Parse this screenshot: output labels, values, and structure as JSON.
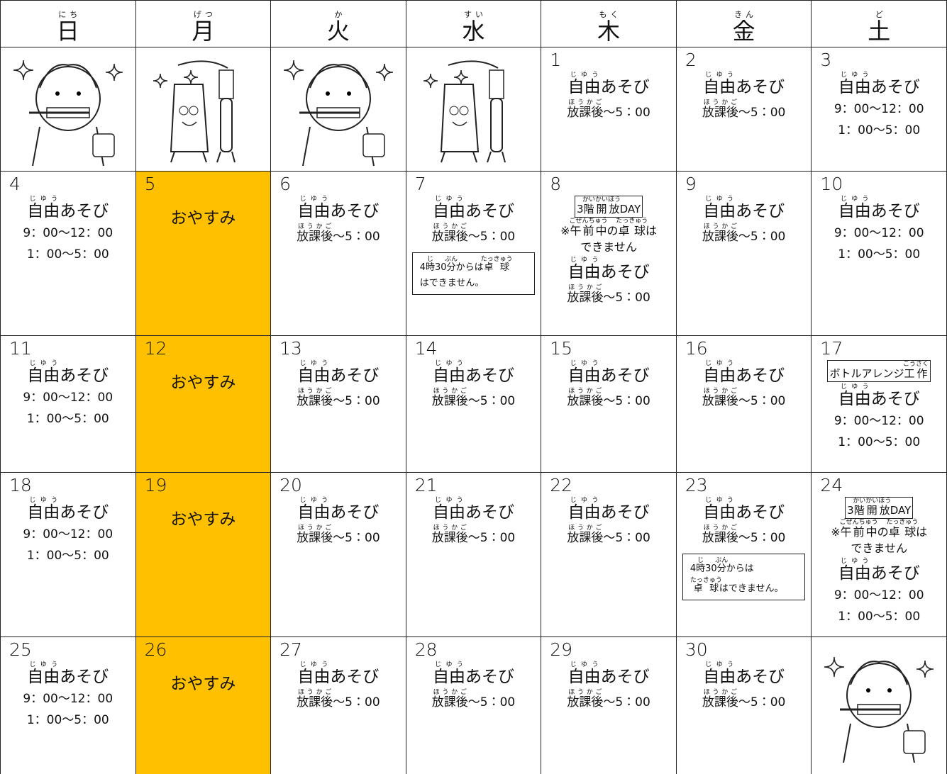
{
  "header": {
    "days": [
      {
        "label": "日",
        "ruby": "にち"
      },
      {
        "label": "月",
        "ruby": "げつ"
      },
      {
        "label": "火",
        "ruby": "か"
      },
      {
        "label": "水",
        "ruby": "すい"
      },
      {
        "label": "木",
        "ruby": "もく"
      },
      {
        "label": "金",
        "ruby": "きん"
      },
      {
        "label": "土",
        "ruby": "ど"
      }
    ]
  },
  "closed_color": "#ffc000",
  "weeks": [
    [
      null,
      null,
      null,
      null,
      {
        "day": "1",
        "play": [
          {
            "text": "自由",
            "ruby": "じゆう"
          },
          "あそび"
        ],
        "hours": [
          [
            {
              "text": "放課後",
              "ruby": "ほうかご"
            },
            "〜5：00"
          ]
        ]
      },
      {
        "day": "2",
        "play": [
          {
            "text": "自由",
            "ruby": "じゆう"
          },
          "あそび"
        ],
        "hours": [
          [
            {
              "text": "放課後",
              "ruby": "ほうかご"
            },
            "〜5：00"
          ]
        ]
      },
      {
        "day": "3",
        "play": [
          {
            "text": "自由",
            "ruby": "じゆう"
          },
          "あそび"
        ],
        "hours": [
          [
            "9：00〜12：00"
          ],
          [
            "1：00〜5：00"
          ]
        ]
      }
    ],
    [
      {
        "day": "4",
        "play": [
          {
            "text": "自由",
            "ruby": "じゆう"
          },
          "あそび"
        ],
        "hours": [
          [
            "9：00〜12：00"
          ],
          [
            "1：00〜5：00"
          ]
        ]
      },
      {
        "day": "5",
        "closed": "おやすみ"
      },
      {
        "day": "6",
        "play": [
          {
            "text": "自由",
            "ruby": "じゆう"
          },
          "あそび"
        ],
        "hours": [
          [
            {
              "text": "放課後",
              "ruby": "ほうかご"
            },
            "〜5：00"
          ]
        ]
      },
      {
        "day": "7",
        "play": [
          {
            "text": "自由",
            "ruby": "じゆう"
          },
          "あそび"
        ],
        "hours": [
          [
            {
              "text": "放課後",
              "ruby": "ほうかご"
            },
            "〜5：00"
          ]
        ],
        "note": [
          [
            "4",
            {
              "text": "時",
              "ruby": "じ"
            },
            "30",
            {
              "text": "分",
              "ruby": "ぷん"
            },
            "からは",
            {
              "text": "卓球",
              "ruby": "たっきゅう"
            }
          ],
          [
            "はできません。"
          ]
        ]
      },
      {
        "day": "8",
        "tag": [
          "3",
          {
            "text": "階開放",
            "ruby": "かいかいほう"
          },
          "DAY"
        ],
        "notice": [
          [
            "※",
            {
              "text": "午前中",
              "ruby": "ごぜんちゅう"
            },
            "の",
            {
              "text": "卓球",
              "ruby": "たっきゅう"
            },
            "は"
          ],
          [
            "できません"
          ]
        ],
        "play": [
          {
            "text": "自由",
            "ruby": "じゆう"
          },
          "あそび"
        ],
        "hours": [
          [
            {
              "text": "放課後",
              "ruby": "ほうかご"
            },
            "〜5：00"
          ]
        ]
      },
      {
        "day": "9",
        "play": [
          {
            "text": "自由",
            "ruby": "じゆう"
          },
          "あそび"
        ],
        "hours": [
          [
            {
              "text": "放課後",
              "ruby": "ほうかご"
            },
            "〜5：00"
          ]
        ]
      },
      {
        "day": "10",
        "play": [
          {
            "text": "自由",
            "ruby": "じゆう"
          },
          "あそび"
        ],
        "hours": [
          [
            "9：00〜12：00"
          ],
          [
            "1：00〜5：00"
          ]
        ]
      }
    ],
    [
      {
        "day": "11",
        "play": [
          {
            "text": "自由",
            "ruby": "じゆう"
          },
          "あそび"
        ],
        "hours": [
          [
            "9：00〜12：00"
          ],
          [
            "1：00〜5：00"
          ]
        ]
      },
      {
        "day": "12",
        "closed": "おやすみ"
      },
      {
        "day": "13",
        "play": [
          {
            "text": "自由",
            "ruby": "じゆう"
          },
          "あそび"
        ],
        "hours": [
          [
            {
              "text": "放課後",
              "ruby": "ほうかご"
            },
            "〜5：00"
          ]
        ]
      },
      {
        "day": "14",
        "play": [
          {
            "text": "自由",
            "ruby": "じゆう"
          },
          "あそび"
        ],
        "hours": [
          [
            {
              "text": "放課後",
              "ruby": "ほうかご"
            },
            "〜5：00"
          ]
        ]
      },
      {
        "day": "15",
        "play": [
          {
            "text": "自由",
            "ruby": "じゆう"
          },
          "あそび"
        ],
        "hours": [
          [
            {
              "text": "放課後",
              "ruby": "ほうかご"
            },
            "〜5：00"
          ]
        ]
      },
      {
        "day": "16",
        "play": [
          {
            "text": "自由",
            "ruby": "じゆう"
          },
          "あそび"
        ],
        "hours": [
          [
            {
              "text": "放課後",
              "ruby": "ほうかご"
            },
            "〜5：00"
          ]
        ]
      },
      {
        "day": "17",
        "tag": [
          "ボトルアレンジ",
          {
            "text": "工作",
            "ruby": "こうさく"
          }
        ],
        "play": [
          {
            "text": "自由",
            "ruby": "じゆう"
          },
          "あそび"
        ],
        "hours": [
          [
            "9：00〜12：00"
          ],
          [
            "1：00〜5：00"
          ]
        ]
      }
    ],
    [
      {
        "day": "18",
        "play": [
          {
            "text": "自由",
            "ruby": "じゆう"
          },
          "あそび"
        ],
        "hours": [
          [
            "9：00〜12：00"
          ],
          [
            "1：00〜5：00"
          ]
        ]
      },
      {
        "day": "19",
        "closed": "おやすみ"
      },
      {
        "day": "20",
        "play": [
          {
            "text": "自由",
            "ruby": "じゆう"
          },
          "あそび"
        ],
        "hours": [
          [
            {
              "text": "放課後",
              "ruby": "ほうかご"
            },
            "〜5：00"
          ]
        ]
      },
      {
        "day": "21",
        "play": [
          {
            "text": "自由",
            "ruby": "じゆう"
          },
          "あそび"
        ],
        "hours": [
          [
            {
              "text": "放課後",
              "ruby": "ほうかご"
            },
            "〜5：00"
          ]
        ]
      },
      {
        "day": "22",
        "play": [
          {
            "text": "自由",
            "ruby": "じゆう"
          },
          "あそび"
        ],
        "hours": [
          [
            {
              "text": "放課後",
              "ruby": "ほうかご"
            },
            "〜5：00"
          ]
        ]
      },
      {
        "day": "23",
        "play": [
          {
            "text": "自由",
            "ruby": "じゆう"
          },
          "あそび"
        ],
        "hours": [
          [
            {
              "text": "放課後",
              "ruby": "ほうかご"
            },
            "〜5：00"
          ]
        ],
        "note": [
          [
            "4",
            {
              "text": "時",
              "ruby": "じ"
            },
            "30",
            {
              "text": "分",
              "ruby": "ぷん"
            },
            "からは"
          ],
          [
            {
              "text": "卓球",
              "ruby": "たっきゅう"
            },
            "はできません。"
          ]
        ]
      },
      {
        "day": "24",
        "tag": [
          "3",
          {
            "text": "階開放",
            "ruby": "かいかいほう"
          },
          "DAY"
        ],
        "notice": [
          [
            "※",
            {
              "text": "午前中",
              "ruby": "ごぜんちゅう"
            },
            "の",
            {
              "text": "卓球",
              "ruby": "たっきゅう"
            },
            "は"
          ],
          [
            "できません"
          ]
        ],
        "play": [
          {
            "text": "自由",
            "ruby": "じゆう"
          },
          "あそび"
        ],
        "hours": [
          [
            "9：00〜12：00"
          ],
          [
            "1：00〜5：00"
          ]
        ]
      }
    ],
    [
      {
        "day": "25",
        "play": [
          {
            "text": "自由",
            "ruby": "じゆう"
          },
          "あそび"
        ],
        "hours": [
          [
            "9：00〜12：00"
          ],
          [
            "1：00〜5：00"
          ]
        ]
      },
      {
        "day": "26",
        "closed": "おやすみ"
      },
      {
        "day": "27",
        "play": [
          {
            "text": "自由",
            "ruby": "じゆう"
          },
          "あそび"
        ],
        "hours": [
          [
            {
              "text": "放課後",
              "ruby": "ほうかご"
            },
            "〜5：00"
          ]
        ]
      },
      {
        "day": "28",
        "play": [
          {
            "text": "自由",
            "ruby": "じゆう"
          },
          "あそび"
        ],
        "hours": [
          [
            {
              "text": "放課後",
              "ruby": "ほうかご"
            },
            "〜5：00"
          ]
        ]
      },
      {
        "day": "29",
        "play": [
          {
            "text": "自由",
            "ruby": "じゆう"
          },
          "あそび"
        ],
        "hours": [
          [
            {
              "text": "放課後",
              "ruby": "ほうかご"
            },
            "〜5：00"
          ]
        ]
      },
      {
        "day": "30",
        "play": [
          {
            "text": "自由",
            "ruby": "じゆう"
          },
          "あそび"
        ],
        "hours": [
          [
            {
              "text": "放課後",
              "ruby": "ほうかご"
            },
            "〜5：00"
          ]
        ]
      },
      null
    ]
  ]
}
